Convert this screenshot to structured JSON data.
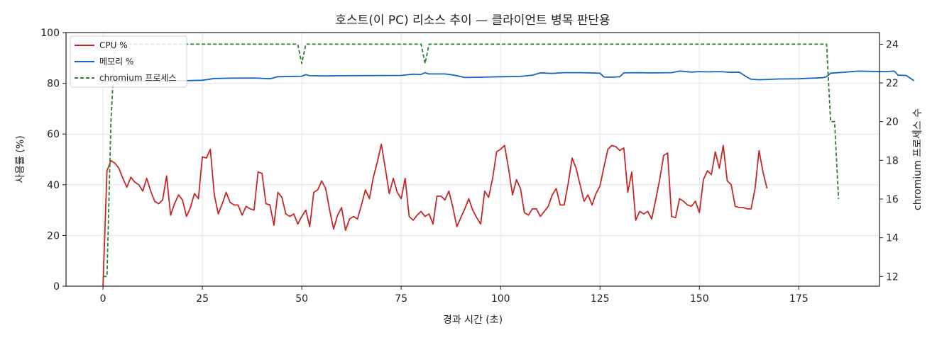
{
  "chart_data": {
    "type": "line",
    "title": "호스트(이 PC) 리소스 추이 — 클라이언트 병목 판단용",
    "xlabel": "경과 시간 (초)",
    "ylabel": "사용률 (%)",
    "y2label": "chromium 프로세스 수",
    "xlim": [
      -9.3,
      195.3
    ],
    "ylim": [
      0,
      100
    ],
    "y2lim": [
      11.5,
      24.6
    ],
    "xticks": [
      "0",
      "25",
      "50",
      "75",
      "100",
      "125",
      "150",
      "175"
    ],
    "yticks": [
      "0",
      "20",
      "40",
      "60",
      "80",
      "100"
    ],
    "y2ticks": [
      "12",
      "14",
      "16",
      "18",
      "20",
      "22",
      "24"
    ],
    "grid": true,
    "legend_position": "top-left",
    "series": [
      {
        "name": "CPU %",
        "color": "#c62828",
        "axis": "left",
        "points": [
          [
            0,
            0
          ],
          [
            1,
            45.5
          ],
          [
            2,
            49.5
          ],
          [
            3,
            48.5
          ],
          [
            4,
            46.5
          ],
          [
            5,
            42.5
          ],
          [
            6,
            39
          ],
          [
            7,
            43
          ],
          [
            8,
            41
          ],
          [
            9,
            40
          ],
          [
            10,
            37.5
          ],
          [
            11,
            42.5
          ],
          [
            12,
            37.5
          ],
          [
            13,
            33.5
          ],
          [
            14,
            32.5
          ],
          [
            15,
            34
          ],
          [
            16,
            43.5
          ],
          [
            17,
            28
          ],
          [
            18,
            32.5
          ],
          [
            19,
            36
          ],
          [
            20,
            34
          ],
          [
            21,
            27.5
          ],
          [
            22,
            31
          ],
          [
            23,
            36.5
          ],
          [
            24,
            34.5
          ],
          [
            25,
            51
          ],
          [
            26,
            50.5
          ],
          [
            27,
            54
          ],
          [
            28,
            36
          ],
          [
            29,
            28.5
          ],
          [
            30,
            32.5
          ],
          [
            31,
            37
          ],
          [
            32,
            33
          ],
          [
            33,
            32
          ],
          [
            34,
            32
          ],
          [
            35,
            28
          ],
          [
            36,
            31.5
          ],
          [
            37,
            30.5
          ],
          [
            38,
            30
          ],
          [
            39,
            45
          ],
          [
            40,
            44.5
          ],
          [
            41,
            32.5
          ],
          [
            42,
            32
          ],
          [
            43,
            24
          ],
          [
            44,
            37
          ],
          [
            45,
            35
          ],
          [
            46,
            28.5
          ],
          [
            47,
            27.5
          ],
          [
            48,
            28.5
          ],
          [
            49,
            24.5
          ],
          [
            50,
            27.5
          ],
          [
            51,
            30
          ],
          [
            52,
            23.5
          ],
          [
            53,
            37
          ],
          [
            54,
            38
          ],
          [
            55,
            41.5
          ],
          [
            56,
            38.5
          ],
          [
            57,
            30
          ],
          [
            58,
            22.5
          ],
          [
            59,
            28
          ],
          [
            60,
            31
          ],
          [
            61,
            22
          ],
          [
            62,
            26.5
          ],
          [
            63,
            27.5
          ],
          [
            64,
            26.5
          ],
          [
            65,
            32
          ],
          [
            66,
            38
          ],
          [
            67,
            34.5
          ],
          [
            68,
            43
          ],
          [
            69,
            49
          ],
          [
            70,
            56
          ],
          [
            71,
            46.5
          ],
          [
            72,
            36.5
          ],
          [
            73,
            42.5
          ],
          [
            74,
            37
          ],
          [
            75,
            34.5
          ],
          [
            76,
            42.5
          ],
          [
            77,
            27.5
          ],
          [
            78,
            26
          ],
          [
            79,
            28
          ],
          [
            80,
            29.5
          ],
          [
            81,
            27.5
          ],
          [
            82,
            28.5
          ],
          [
            83,
            24.5
          ],
          [
            84,
            35.5
          ],
          [
            85,
            35.5
          ],
          [
            86,
            34
          ],
          [
            87,
            37.5
          ],
          [
            88,
            31
          ],
          [
            89,
            23.5
          ],
          [
            90,
            27
          ],
          [
            91,
            30.5
          ],
          [
            92,
            34.5
          ],
          [
            93,
            30
          ],
          [
            94,
            27
          ],
          [
            95,
            24.5
          ],
          [
            96,
            37.5
          ],
          [
            97,
            35
          ],
          [
            98,
            42.5
          ],
          [
            99,
            53
          ],
          [
            100,
            54
          ],
          [
            101,
            55.5
          ],
          [
            102,
            46.5
          ],
          [
            103,
            36
          ],
          [
            104,
            42
          ],
          [
            105,
            38.5
          ],
          [
            106,
            29
          ],
          [
            107,
            28
          ],
          [
            108,
            30.5
          ],
          [
            109,
            30.5
          ],
          [
            110,
            27.5
          ],
          [
            111,
            29.5
          ],
          [
            112,
            31.5
          ],
          [
            113,
            36
          ],
          [
            114,
            38.5
          ],
          [
            115,
            32
          ],
          [
            116,
            32
          ],
          [
            117,
            40.5
          ],
          [
            118,
            50.5
          ],
          [
            119,
            46.5
          ],
          [
            120,
            40
          ],
          [
            121,
            33.5
          ],
          [
            122,
            36
          ],
          [
            123,
            32
          ],
          [
            124,
            36.5
          ],
          [
            125,
            39.5
          ],
          [
            126,
            47
          ],
          [
            127,
            54
          ],
          [
            128,
            55.5
          ],
          [
            129,
            55
          ],
          [
            130,
            53.5
          ],
          [
            131,
            54.5
          ],
          [
            132,
            37
          ],
          [
            133,
            45
          ],
          [
            134,
            26
          ],
          [
            135,
            29.5
          ],
          [
            136,
            28.5
          ],
          [
            137,
            29.5
          ],
          [
            138,
            26.5
          ],
          [
            139,
            34
          ],
          [
            140,
            42
          ],
          [
            141,
            51.5
          ],
          [
            142,
            52.5
          ],
          [
            143,
            27.5
          ],
          [
            144,
            27
          ],
          [
            145,
            34.5
          ],
          [
            146,
            33.5
          ],
          [
            147,
            32
          ],
          [
            148,
            31.5
          ],
          [
            149,
            33.5
          ],
          [
            150,
            29
          ],
          [
            151,
            42
          ],
          [
            152,
            45.5
          ],
          [
            153,
            44
          ],
          [
            154,
            53
          ],
          [
            155,
            46.5
          ],
          [
            156,
            55.5
          ],
          [
            157,
            41.5
          ],
          [
            158,
            40
          ],
          [
            159,
            31.5
          ],
          [
            160,
            31
          ],
          [
            161,
            31
          ],
          [
            162,
            30.5
          ],
          [
            163,
            30.5
          ],
          [
            164,
            38.5
          ],
          [
            165,
            53.5
          ],
          [
            166,
            45
          ],
          [
            167,
            38.5
          ]
        ]
      },
      {
        "name": "메모리 %",
        "color": "#1565c0",
        "axis": "left",
        "points": [
          [
            0,
            80.8
          ],
          [
            5,
            80.7
          ],
          [
            10,
            80.8
          ],
          [
            15,
            80.9
          ],
          [
            20,
            81.0
          ],
          [
            25,
            81.2
          ],
          [
            28,
            81.9
          ],
          [
            32,
            82.0
          ],
          [
            38,
            82.1
          ],
          [
            42,
            81.8
          ],
          [
            44,
            82.6
          ],
          [
            50,
            82.8
          ],
          [
            51,
            83.4
          ],
          [
            52,
            83.0
          ],
          [
            56,
            82.9
          ],
          [
            60,
            83.0
          ],
          [
            75,
            83.1
          ],
          [
            78,
            83.6
          ],
          [
            80,
            83.5
          ],
          [
            81,
            84.2
          ],
          [
            82,
            83.7
          ],
          [
            86,
            83.7
          ],
          [
            88,
            83.3
          ],
          [
            91,
            82.3
          ],
          [
            95,
            82.4
          ],
          [
            100,
            82.6
          ],
          [
            105,
            82.7
          ],
          [
            108,
            83.2
          ],
          [
            110,
            84.1
          ],
          [
            113,
            83.9
          ],
          [
            116,
            84.2
          ],
          [
            120,
            84.2
          ],
          [
            122,
            84.1
          ],
          [
            125,
            84.0
          ],
          [
            126,
            82.5
          ],
          [
            128,
            82.4
          ],
          [
            130,
            82.6
          ],
          [
            131,
            84.1
          ],
          [
            135,
            84.2
          ],
          [
            137,
            84.1
          ],
          [
            139,
            84.1
          ],
          [
            143,
            84.2
          ],
          [
            145,
            84.8
          ],
          [
            148,
            84.4
          ],
          [
            150,
            84.6
          ],
          [
            152,
            84.5
          ],
          [
            155,
            84.6
          ],
          [
            158,
            84.3
          ],
          [
            160,
            84.4
          ],
          [
            162,
            82.4
          ],
          [
            163,
            81.6
          ],
          [
            165,
            81.4
          ],
          [
            170,
            81.7
          ],
          [
            175,
            81.8
          ],
          [
            178,
            82.0
          ],
          [
            181,
            82.2
          ],
          [
            182,
            82.6
          ],
          [
            183,
            84.0
          ],
          [
            186,
            84.3
          ],
          [
            190,
            84.8
          ],
          [
            194,
            84.7
          ],
          [
            197,
            84.6
          ],
          [
            199,
            84.8
          ],
          [
            200,
            83.2
          ],
          [
            202,
            83.1
          ],
          [
            204,
            81.0
          ]
        ]
      },
      {
        "name": "chromium 프로세스",
        "color": "#2e7d32",
        "axis": "right",
        "dashed": true,
        "points": [
          [
            0,
            12
          ],
          [
            1,
            12
          ],
          [
            2,
            20
          ],
          [
            3,
            24
          ],
          [
            49,
            24
          ],
          [
            50,
            23
          ],
          [
            51,
            24
          ],
          [
            80,
            24
          ],
          [
            81,
            23
          ],
          [
            82,
            24
          ],
          [
            182,
            24
          ],
          [
            183,
            20
          ],
          [
            184,
            20
          ],
          [
            185,
            16
          ]
        ]
      }
    ]
  }
}
